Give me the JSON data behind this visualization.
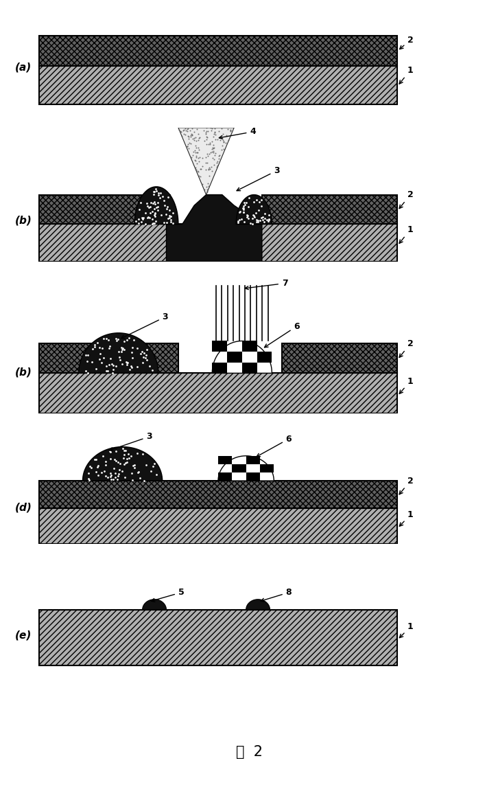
{
  "title": "图  2",
  "bg_color": "#ffffff",
  "panel_labels": [
    "(a)",
    "(b)",
    "(b)",
    "(d)",
    "(e)"
  ],
  "layer1_facecolor": "#b0b0b0",
  "layer2_facecolor": "#606060",
  "layer1_hatch": "////",
  "layer2_hatch": "xxxx",
  "layer1_edgecolor": "#000000",
  "layer2_edgecolor": "#000000",
  "dark_blob_color": "#1a1a1a",
  "checker_dark": "#000000",
  "checker_light": "#ffffff"
}
